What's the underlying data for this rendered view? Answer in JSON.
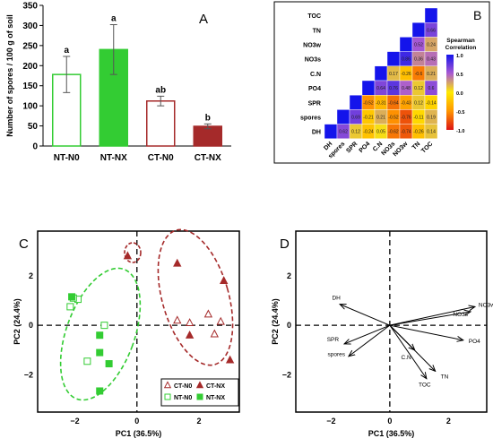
{
  "chart_data": [
    {
      "panel": "A",
      "type": "bar",
      "ylabel": "Number of spores / 100 g of soil",
      "ylim": [
        0,
        350
      ],
      "yticks": [
        0,
        50,
        100,
        150,
        200,
        250,
        300,
        350
      ],
      "categories": [
        "NT-N0",
        "NT-NX",
        "CT-N0",
        "CT-NX"
      ],
      "values": [
        178,
        240,
        112,
        49
      ],
      "errors": [
        45,
        62,
        12,
        6
      ],
      "letters": [
        "a",
        "a",
        "ab",
        "b"
      ],
      "fill": [
        "#ffffff",
        "#33cc33",
        "#ffffff",
        "#a52a2a"
      ],
      "stroke": [
        "#33cc33",
        "#33cc33",
        "#a52a2a",
        "#a52a2a"
      ]
    },
    {
      "panel": "B",
      "type": "heatmap",
      "legend_title": "Spearman Correlation",
      "legend_ticks": [
        "1.0",
        "0.5",
        "0.0",
        "-0.5",
        "-1.0"
      ],
      "row_labels": [
        "TOC",
        "TN",
        "NO3w",
        "NO3s",
        "C.N",
        "PO4",
        "SPR",
        "spores",
        "DH"
      ],
      "col_labels": [
        "DH",
        "spores",
        "SPR",
        "PO4",
        "C.N",
        "NO3s",
        "NO3w",
        "TN",
        "TOC"
      ],
      "cells": [
        [
          "",
          "",
          "",
          "",
          "",
          "",
          "",
          "",
          "1"
        ],
        [
          "",
          "",
          "",
          "",
          "",
          "",
          "",
          "1",
          "0.66"
        ],
        [
          "",
          "",
          "",
          "",
          "",
          "",
          "1",
          "0.52",
          "0.24"
        ],
        [
          "",
          "",
          "",
          "",
          "",
          "1",
          "0.86",
          "0.36",
          "0.43"
        ],
        [
          "",
          "",
          "",
          "",
          "1",
          "0.17",
          "-0.26",
          "-0.6",
          "0.21"
        ],
        [
          "",
          "",
          "",
          "1",
          "0.64",
          "0.76",
          "0.48",
          "0.12",
          "0.6"
        ],
        [
          "",
          "",
          "1",
          "-0.52",
          "-0.31",
          "-0.64",
          "-0.43",
          "0.12",
          "-0.14"
        ],
        [
          "",
          "1",
          "0.69",
          "-0.21",
          "0.21",
          "-0.52",
          "-0.76",
          "-0.11",
          "0.19"
        ],
        [
          "1",
          "0.62",
          "0.12",
          "-0.24",
          "0.05",
          "-0.62",
          "-0.74",
          "-0.26",
          "0.14"
        ]
      ]
    },
    {
      "panel": "C",
      "type": "scatter",
      "xlabel": "PC1 (36.5%)",
      "ylabel": "PC2 (24.4%)",
      "xlim": [
        -3.2,
        3.3
      ],
      "ylim": [
        -3.5,
        3.8
      ],
      "xticks": [
        -2,
        0,
        2
      ],
      "yticks": [
        -2,
        0,
        2
      ],
      "legend": [
        "CT-N0",
        "CT-NX",
        "NT-N0",
        "NT-NX"
      ],
      "series": [
        {
          "name": "CT-N0",
          "marker": "open-triangle",
          "color": "#a52a2a",
          "points": [
            [
              1.3,
              0.2
            ],
            [
              1.7,
              0.1
            ],
            [
              2.3,
              0.45
            ],
            [
              2.5,
              -0.35
            ],
            [
              2.7,
              0.15
            ]
          ]
        },
        {
          "name": "CT-NX",
          "marker": "filled-triangle",
          "color": "#a52a2a",
          "points": [
            [
              -0.3,
              2.8
            ],
            [
              1.3,
              2.5
            ],
            [
              1.7,
              -0.4
            ],
            [
              2.8,
              1.8
            ],
            [
              3.0,
              -1.4
            ]
          ]
        },
        {
          "name": "NT-N0",
          "marker": "open-square",
          "color": "#33cc33",
          "points": [
            [
              -2.15,
              0.75
            ],
            [
              -1.9,
              1.05
            ],
            [
              -1.05,
              0.0
            ],
            [
              -1.6,
              -1.45
            ],
            [
              -2.05,
              1.1
            ]
          ]
        },
        {
          "name": "NT-NX",
          "marker": "filled-square",
          "color": "#33cc33",
          "points": [
            [
              -2.1,
              1.15
            ],
            [
              -1.2,
              -0.4
            ],
            [
              -1.2,
              -1.1
            ],
            [
              -0.9,
              -1.55
            ],
            [
              -1.2,
              -2.65
            ]
          ]
        }
      ]
    },
    {
      "panel": "D",
      "type": "biplot",
      "xlabel": "PC1 (36.5%)",
      "ylabel": "PC2 (24.4%)",
      "xlim": [
        -3.2,
        3.3
      ],
      "ylim": [
        -3.5,
        3.8
      ],
      "xticks": [
        -2,
        0,
        2
      ],
      "yticks": [
        -2,
        0,
        2
      ],
      "vectors": [
        {
          "name": "NO3w",
          "x": 2.9,
          "y": 0.75
        },
        {
          "name": "NO3s",
          "x": 2.75,
          "y": 0.55
        },
        {
          "name": "PO4",
          "x": 2.5,
          "y": -0.6
        },
        {
          "name": "DH",
          "x": -1.7,
          "y": 0.85
        },
        {
          "name": "SPR",
          "x": -1.55,
          "y": -0.75
        },
        {
          "name": "spores",
          "x": -1.4,
          "y": -1.25
        },
        {
          "name": "C.N",
          "x": 0.85,
          "y": -1.0
        },
        {
          "name": "TN",
          "x": 1.55,
          "y": -1.85
        },
        {
          "name": "TOC",
          "x": 1.25,
          "y": -2.15
        }
      ]
    }
  ],
  "panel_labels": {
    "a": "A",
    "b": "B",
    "c": "C",
    "d": "D"
  }
}
